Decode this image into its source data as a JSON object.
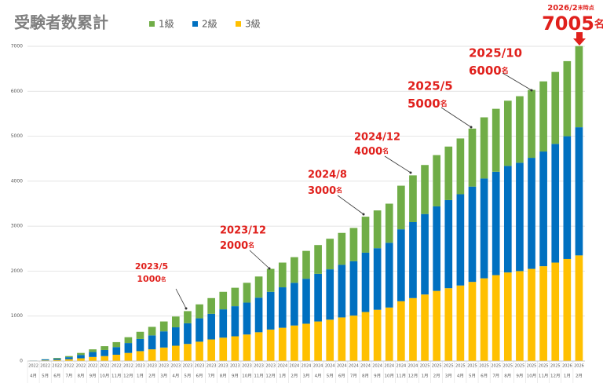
{
  "chart_data": {
    "type": "stacked_bar",
    "title": "受験者数累計",
    "categories": [
      [
        "2022",
        "4月"
      ],
      [
        "2022",
        "5月"
      ],
      [
        "2022",
        "6月"
      ],
      [
        "2022",
        "7月"
      ],
      [
        "2022",
        "8月"
      ],
      [
        "2022",
        "9月"
      ],
      [
        "2022",
        "10月"
      ],
      [
        "2022",
        "11月"
      ],
      [
        "2022",
        "12月"
      ],
      [
        "2023",
        "1月"
      ],
      [
        "2023",
        "2月"
      ],
      [
        "2023",
        "3月"
      ],
      [
        "2023",
        "4月"
      ],
      [
        "2023",
        "5月"
      ],
      [
        "2023",
        "6月"
      ],
      [
        "2023",
        "7月"
      ],
      [
        "2023",
        "8月"
      ],
      [
        "2023",
        "9月"
      ],
      [
        "2023",
        "10月"
      ],
      [
        "2023",
        "11月"
      ],
      [
        "2023",
        "12月"
      ],
      [
        "2024",
        "1月"
      ],
      [
        "2024",
        "2月"
      ],
      [
        "2024",
        "3月"
      ],
      [
        "2024",
        "4月"
      ],
      [
        "2024",
        "5月"
      ],
      [
        "2024",
        "6月"
      ],
      [
        "2024",
        "7月"
      ],
      [
        "2024",
        "8月"
      ],
      [
        "2024",
        "9月"
      ],
      [
        "2024",
        "10月"
      ],
      [
        "2024",
        "11月"
      ],
      [
        "2024",
        "12月"
      ],
      [
        "2025",
        "1月"
      ],
      [
        "2025",
        "2月"
      ],
      [
        "2025",
        "3月"
      ],
      [
        "2025",
        "4月"
      ],
      [
        "2025",
        "5月"
      ],
      [
        "2025",
        "6月"
      ],
      [
        "2025",
        "7月"
      ],
      [
        "2025",
        "8月"
      ],
      [
        "2025",
        "9月"
      ],
      [
        "2025",
        "10月"
      ],
      [
        "2025",
        "11月"
      ],
      [
        "2025",
        "12月"
      ],
      [
        "2026",
        "1月"
      ],
      [
        "2026",
        "2月"
      ]
    ],
    "series": [
      {
        "name": "1級",
        "color": "#70ad47",
        "values": [
          0,
          5,
          15,
          25,
          45,
          60,
          85,
          110,
          130,
          160,
          190,
          220,
          240,
          270,
          310,
          350,
          390,
          410,
          440,
          470,
          510,
          550,
          570,
          620,
          640,
          680,
          710,
          740,
          800,
          840,
          870,
          970,
          1040,
          1090,
          1140,
          1190,
          1240,
          1290,
          1360,
          1400,
          1450,
          1480,
          1510,
          1560,
          1600,
          1670,
          1805
        ]
      },
      {
        "name": "2級",
        "color": "#0070c0",
        "values": [
          5,
          20,
          30,
          45,
          75,
          110,
          135,
          170,
          220,
          270,
          310,
          360,
          410,
          460,
          520,
          570,
          630,
          670,
          710,
          770,
          840,
          900,
          950,
          1000,
          1060,
          1120,
          1170,
          1210,
          1320,
          1370,
          1440,
          1600,
          1690,
          1790,
          1880,
          1960,
          2030,
          2120,
          2220,
          2300,
          2370,
          2410,
          2470,
          2550,
          2640,
          2730,
          2850
        ]
      },
      {
        "name": "3級",
        "color": "#ffc000",
        "values": [
          5,
          15,
          25,
          40,
          60,
          90,
          110,
          140,
          180,
          220,
          260,
          300,
          340,
          380,
          430,
          480,
          520,
          550,
          590,
          640,
          700,
          740,
          790,
          830,
          880,
          920,
          970,
          1010,
          1090,
          1140,
          1190,
          1330,
          1400,
          1480,
          1560,
          1620,
          1680,
          1760,
          1840,
          1910,
          1970,
          2000,
          2050,
          2110,
          2190,
          2270,
          2350
        ]
      }
    ],
    "ylim": [
      0,
      7000
    ],
    "yticks": [
      0,
      1000,
      2000,
      3000,
      4000,
      5000,
      6000,
      7000
    ],
    "grid": true,
    "unit": "名",
    "annotations": [
      {
        "date": "2023/5",
        "value": 1000
      },
      {
        "date": "2023/12",
        "value": 2000
      },
      {
        "date": "2024/8",
        "value": 3000
      },
      {
        "date": "2024/12",
        "value": 4000
      },
      {
        "date": "2025/5",
        "value": 5000
      },
      {
        "date": "2025/10",
        "value": 6000
      }
    ],
    "latest": {
      "date": "2026/2",
      "note": "末時点",
      "value": 7005
    }
  }
}
